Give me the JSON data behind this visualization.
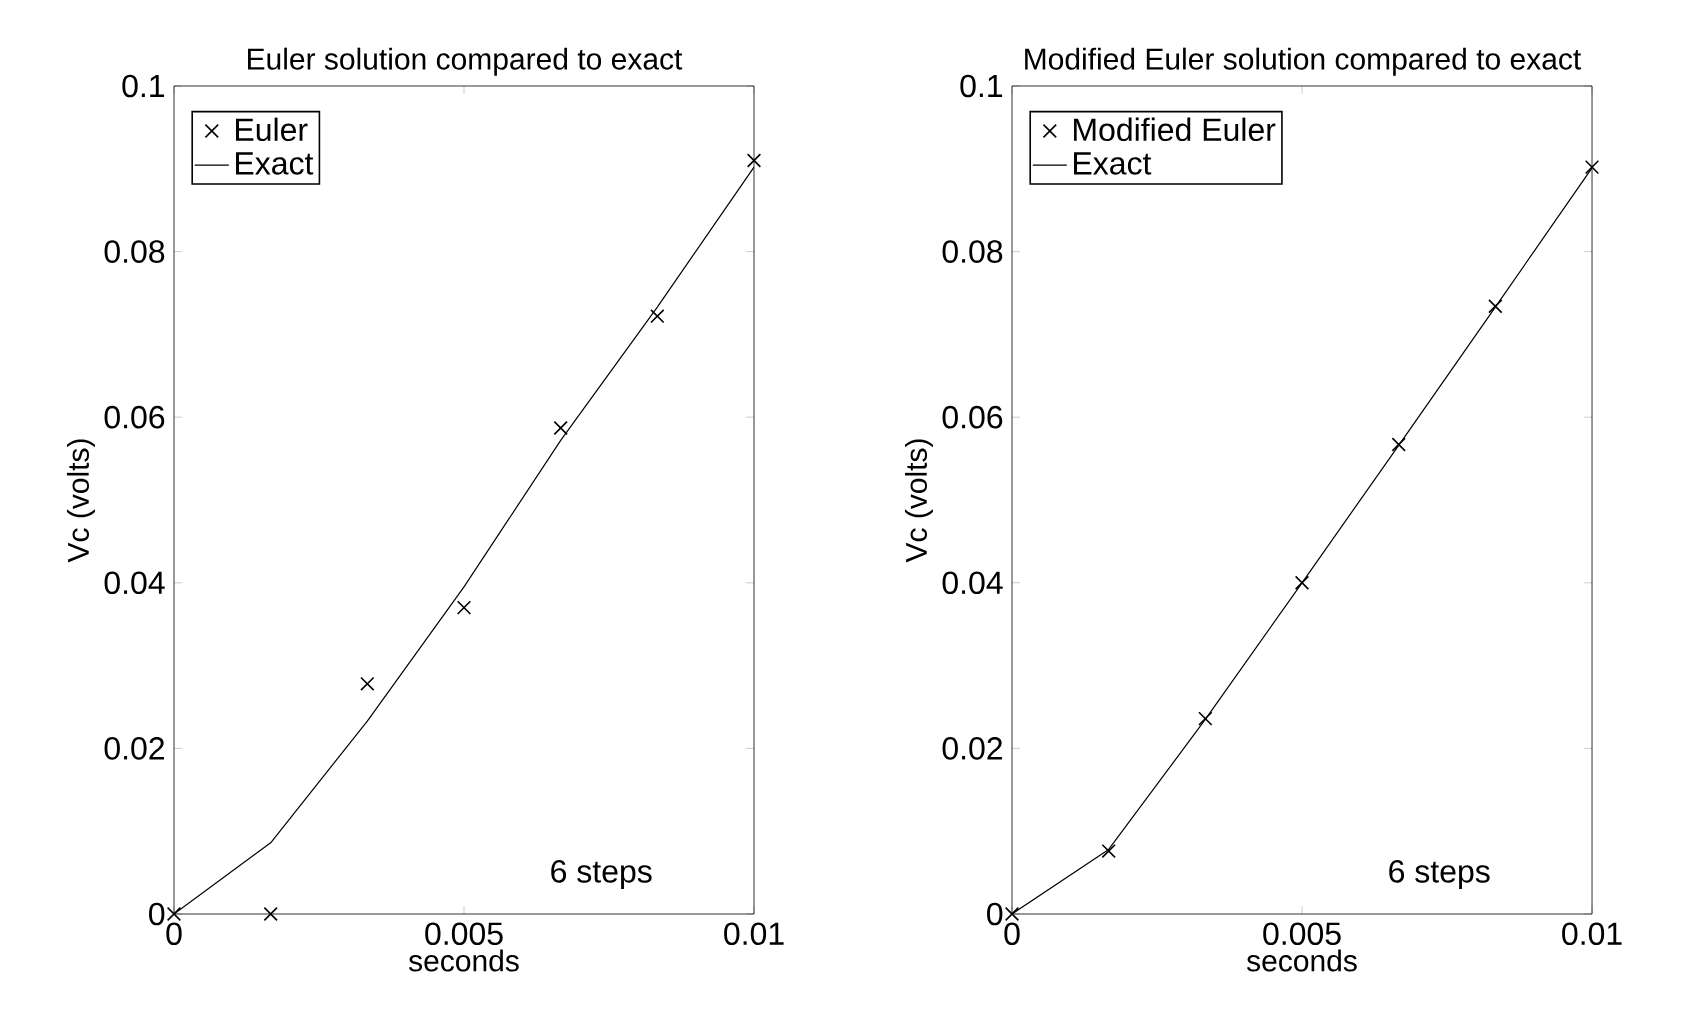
{
  "chart_data": [
    {
      "type": "line",
      "title": "Euler solution compared to exact",
      "xlabel": "seconds",
      "ylabel": "Vc (volts)",
      "xlim": [
        0,
        0.01
      ],
      "ylim": [
        0,
        0.1
      ],
      "xticks": [
        0,
        0.005,
        0.01
      ],
      "yticks": [
        0,
        0.02,
        0.04,
        0.06,
        0.08,
        0.1
      ],
      "legend": "top left",
      "annotations": [
        "6 steps"
      ],
      "x": [
        0,
        0.001667,
        0.003333,
        0.005,
        0.006667,
        0.008333,
        0.01
      ],
      "series": [
        {
          "name": "Euler",
          "type": "scatter",
          "marker": "cross",
          "color": "#000000",
          "values": [
            0,
            0,
            0.0278,
            0.037,
            0.0587,
            0.0722,
            0.091
          ]
        },
        {
          "name": "Exact",
          "type": "line",
          "marker": "none",
          "line_style": "solid",
          "color": "#000000",
          "values": [
            0,
            0.0086,
            0.0233,
            0.0395,
            0.0572,
            0.0733,
            0.0902
          ]
        }
      ]
    },
    {
      "type": "line",
      "title": "Modified Euler solution compared to exact",
      "xlabel": "seconds",
      "ylabel": "Vc (volts)",
      "xlim": [
        0,
        0.01
      ],
      "ylim": [
        0,
        0.1
      ],
      "xticks": [
        0,
        0.005,
        0.01
      ],
      "yticks": [
        0,
        0.02,
        0.04,
        0.06,
        0.08,
        0.1
      ],
      "legend": "top left",
      "annotations": [
        "6 steps"
      ],
      "x": [
        0,
        0.001667,
        0.003333,
        0.005,
        0.006667,
        0.008333,
        0.01
      ],
      "series": [
        {
          "name": "Modified Euler",
          "type": "scatter",
          "marker": "cross",
          "color": "#000000",
          "values": [
            0,
            0.0076,
            0.0236,
            0.04,
            0.0567,
            0.0734,
            0.0902
          ]
        },
        {
          "name": "Exact",
          "type": "line",
          "marker": "none",
          "line_style": "solid",
          "color": "#000000",
          "values": [
            0,
            0.0078,
            0.0235,
            0.04,
            0.0566,
            0.0733,
            0.0901
          ]
        }
      ]
    }
  ]
}
